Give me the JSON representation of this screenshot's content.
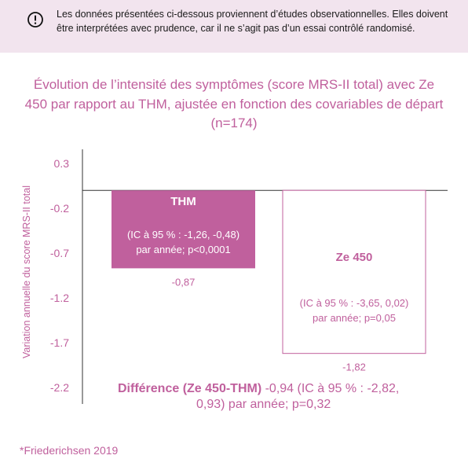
{
  "notice": {
    "icon": "exclamation-circle-icon",
    "text": "Les données présentées ci-dessous proviennent d’études observationnelles. Elles doivent être interprétées avec prudence, car il ne s’agit pas d’un essai contrôlé randomisé."
  },
  "colors": {
    "accent": "#c0609d",
    "bar_thm": "#c0609d",
    "bar_ze450_fill": "#ffffff",
    "banner_bg": "#f2e4ee"
  },
  "chart_data": {
    "type": "bar",
    "title": "Évolution de l’intensité des symptômes (score MRS-II total) avec Ze 450 par rapport au THM, ajustée en fonction des covariables de départ (n=174)",
    "xlabel": "",
    "ylabel": "Variation annuelle du score MRS-II total",
    "ylim": [
      -2.2,
      0.3
    ],
    "yticks": [
      0.3,
      -0.2,
      -0.7,
      -1.2,
      -1.7,
      -2.2
    ],
    "grid": false,
    "categories": [
      "THM",
      "Ze 450"
    ],
    "values": [
      -0.87,
      -1.82
    ],
    "value_labels": [
      "-0,87",
      "-1,82"
    ],
    "annotations": [
      "(IC à 95 % : -1,26, -0,48) par année; p<0,0001",
      "(IC à 95 % : -3,65, 0,02) par année; p=0,05"
    ],
    "difference_note": {
      "bold": "Différence (Ze 450-THM)",
      "rest": " -0,94 (IC à 95 % : -2,82, 0,93) par année; p=0,32"
    }
  },
  "footnote": "*Friederichsen 2019"
}
